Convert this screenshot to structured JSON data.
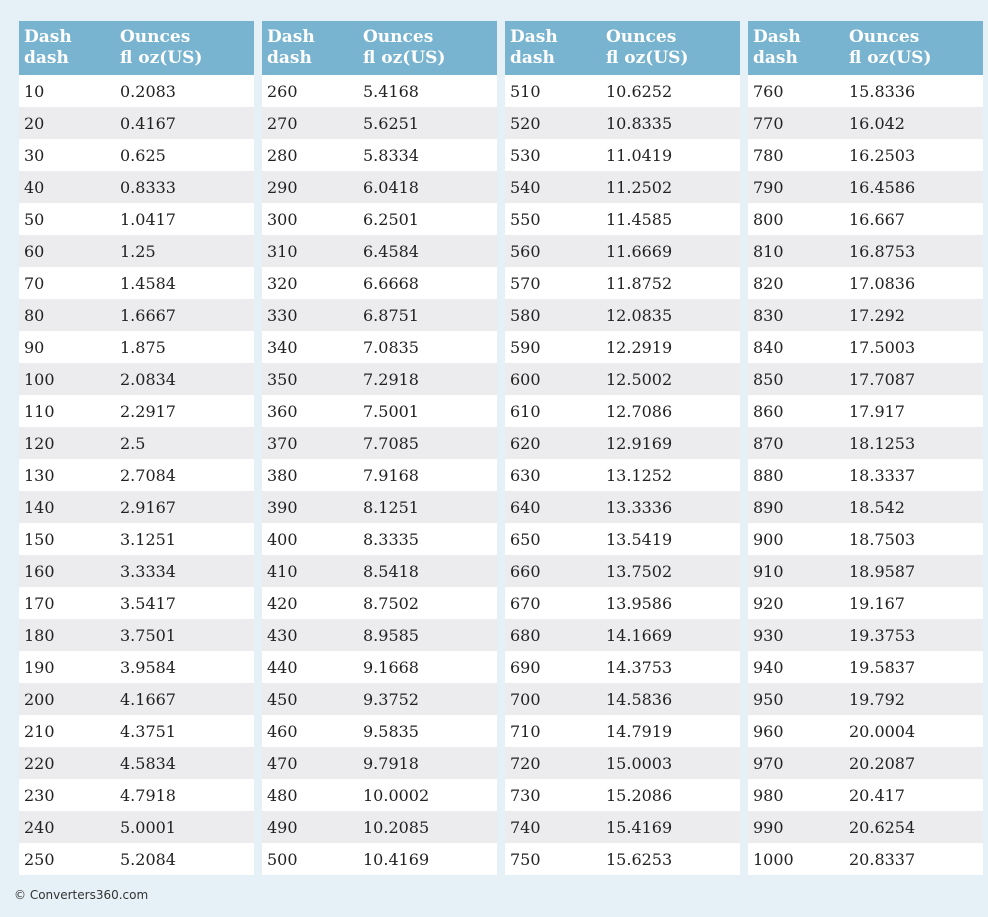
{
  "header": {
    "col1": [
      "Dash",
      "dash"
    ],
    "col2": [
      "Ounces",
      "fl oz(US)"
    ]
  },
  "tables": [
    {
      "rows": [
        [
          "10",
          "0.2083"
        ],
        [
          "20",
          "0.4167"
        ],
        [
          "30",
          "0.625"
        ],
        [
          "40",
          "0.8333"
        ],
        [
          "50",
          "1.0417"
        ],
        [
          "60",
          "1.25"
        ],
        [
          "70",
          "1.4584"
        ],
        [
          "80",
          "1.6667"
        ],
        [
          "90",
          "1.875"
        ],
        [
          "100",
          "2.0834"
        ],
        [
          "110",
          "2.2917"
        ],
        [
          "120",
          "2.5"
        ],
        [
          "130",
          "2.7084"
        ],
        [
          "140",
          "2.9167"
        ],
        [
          "150",
          "3.1251"
        ],
        [
          "160",
          "3.3334"
        ],
        [
          "170",
          "3.5417"
        ],
        [
          "180",
          "3.7501"
        ],
        [
          "190",
          "3.9584"
        ],
        [
          "200",
          "4.1667"
        ],
        [
          "210",
          "4.3751"
        ],
        [
          "220",
          "4.5834"
        ],
        [
          "230",
          "4.7918"
        ],
        [
          "240",
          "5.0001"
        ],
        [
          "250",
          "5.2084"
        ]
      ]
    },
    {
      "rows": [
        [
          "260",
          "5.4168"
        ],
        [
          "270",
          "5.6251"
        ],
        [
          "280",
          "5.8334"
        ],
        [
          "290",
          "6.0418"
        ],
        [
          "300",
          "6.2501"
        ],
        [
          "310",
          "6.4584"
        ],
        [
          "320",
          "6.6668"
        ],
        [
          "330",
          "6.8751"
        ],
        [
          "340",
          "7.0835"
        ],
        [
          "350",
          "7.2918"
        ],
        [
          "360",
          "7.5001"
        ],
        [
          "370",
          "7.7085"
        ],
        [
          "380",
          "7.9168"
        ],
        [
          "390",
          "8.1251"
        ],
        [
          "400",
          "8.3335"
        ],
        [
          "410",
          "8.5418"
        ],
        [
          "420",
          "8.7502"
        ],
        [
          "430",
          "8.9585"
        ],
        [
          "440",
          "9.1668"
        ],
        [
          "450",
          "9.3752"
        ],
        [
          "460",
          "9.5835"
        ],
        [
          "470",
          "9.7918"
        ],
        [
          "480",
          "10.0002"
        ],
        [
          "490",
          "10.2085"
        ],
        [
          "500",
          "10.4169"
        ]
      ]
    },
    {
      "rows": [
        [
          "510",
          "10.6252"
        ],
        [
          "520",
          "10.8335"
        ],
        [
          "530",
          "11.0419"
        ],
        [
          "540",
          "11.2502"
        ],
        [
          "550",
          "11.4585"
        ],
        [
          "560",
          "11.6669"
        ],
        [
          "570",
          "11.8752"
        ],
        [
          "580",
          "12.0835"
        ],
        [
          "590",
          "12.2919"
        ],
        [
          "600",
          "12.5002"
        ],
        [
          "610",
          "12.7086"
        ],
        [
          "620",
          "12.9169"
        ],
        [
          "630",
          "13.1252"
        ],
        [
          "640",
          "13.3336"
        ],
        [
          "650",
          "13.5419"
        ],
        [
          "660",
          "13.7502"
        ],
        [
          "670",
          "13.9586"
        ],
        [
          "680",
          "14.1669"
        ],
        [
          "690",
          "14.3753"
        ],
        [
          "700",
          "14.5836"
        ],
        [
          "710",
          "14.7919"
        ],
        [
          "720",
          "15.0003"
        ],
        [
          "730",
          "15.2086"
        ],
        [
          "740",
          "15.4169"
        ],
        [
          "750",
          "15.6253"
        ]
      ]
    },
    {
      "rows": [
        [
          "760",
          "15.8336"
        ],
        [
          "770",
          "16.042"
        ],
        [
          "780",
          "16.2503"
        ],
        [
          "790",
          "16.4586"
        ],
        [
          "800",
          "16.667"
        ],
        [
          "810",
          "16.8753"
        ],
        [
          "820",
          "17.0836"
        ],
        [
          "830",
          "17.292"
        ],
        [
          "840",
          "17.5003"
        ],
        [
          "850",
          "17.7087"
        ],
        [
          "860",
          "17.917"
        ],
        [
          "870",
          "18.1253"
        ],
        [
          "880",
          "18.3337"
        ],
        [
          "890",
          "18.542"
        ],
        [
          "900",
          "18.7503"
        ],
        [
          "910",
          "18.9587"
        ],
        [
          "920",
          "19.167"
        ],
        [
          "930",
          "19.3753"
        ],
        [
          "940",
          "19.5837"
        ],
        [
          "950",
          "19.792"
        ],
        [
          "960",
          "20.0004"
        ],
        [
          "970",
          "20.2087"
        ],
        [
          "980",
          "20.417"
        ],
        [
          "990",
          "20.6254"
        ],
        [
          "1000",
          "20.8337"
        ]
      ]
    }
  ],
  "footer": {
    "text": "© Converters360.com"
  }
}
